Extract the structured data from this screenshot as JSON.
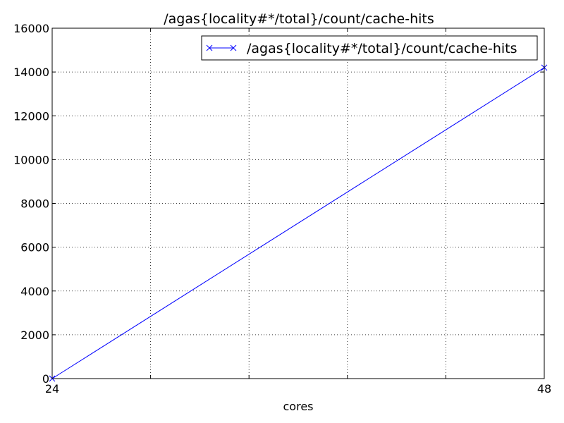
{
  "chart_data": {
    "type": "line",
    "title": "/agas{locality#*/total}/count/cache-hits",
    "xlabel": "cores",
    "ylabel": "",
    "xlim": [
      24,
      48
    ],
    "ylim": [
      0,
      16000
    ],
    "x_ticks": [
      "24",
      "48"
    ],
    "y_ticks": [
      "0",
      "2000",
      "4000",
      "6000",
      "8000",
      "10000",
      "12000",
      "14000",
      "16000"
    ],
    "x_grid": [
      24,
      28.8,
      33.6,
      38.4,
      43.2,
      48
    ],
    "grid": true,
    "legend_position": "top-right",
    "series": [
      {
        "name": "/agas{locality#*/total}/count/cache-hits",
        "color": "#0000ff",
        "marker": "x",
        "x": [
          24,
          48
        ],
        "y": [
          0,
          14200
        ]
      }
    ]
  }
}
